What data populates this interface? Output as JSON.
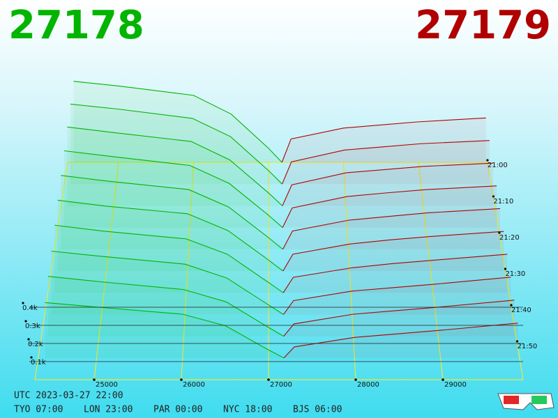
{
  "header": {
    "bid": "27178",
    "ask": "27179"
  },
  "chart_data": {
    "type": "depth3d",
    "bid_color": "#00b400",
    "ask_color": "#b00000",
    "xlim": [
      24320,
      29920
    ],
    "xticks": [
      25000,
      26000,
      27000,
      28000,
      29000
    ],
    "ylim": [
      0,
      400
    ],
    "yticks": [
      {
        "value": 100,
        "label": "0.1k"
      },
      {
        "value": 200,
        "label": "0.2k"
      },
      {
        "value": 300,
        "label": "0.3k"
      },
      {
        "value": 400,
        "label": "0.4k"
      }
    ],
    "zlim": [
      0,
      60
    ],
    "zticks": [
      {
        "value": 0,
        "label": "21:00"
      },
      {
        "value": 10,
        "label": "21:10"
      },
      {
        "value": 20,
        "label": "21:20"
      },
      {
        "value": 30,
        "label": "21:30"
      },
      {
        "value": 40,
        "label": "21:40"
      },
      {
        "value": 50,
        "label": "21:50"
      }
    ],
    "bid_prices": [
      27178,
      27000,
      26500,
      26000,
      25000,
      24400
    ],
    "ask_prices": [
      27179,
      27300,
      28000,
      28500,
      29000,
      29900
    ],
    "snapshots": [
      {
        "z": 0,
        "bids": [
          0,
          90,
          310,
          430,
          490,
          520
        ],
        "asks": [
          0,
          150,
          220,
          240,
          260,
          285
        ]
      },
      {
        "z": 6,
        "bids": [
          0,
          85,
          300,
          415,
          475,
          505
        ],
        "asks": [
          0,
          140,
          215,
          235,
          255,
          275
        ]
      },
      {
        "z": 12,
        "bids": [
          0,
          80,
          285,
          400,
          455,
          490
        ],
        "asks": [
          0,
          130,
          205,
          225,
          245,
          265
        ]
      },
      {
        "z": 18,
        "bids": [
          0,
          75,
          270,
          380,
          435,
          470
        ],
        "asks": [
          0,
          120,
          190,
          212,
          232,
          255
        ]
      },
      {
        "z": 24,
        "bids": [
          0,
          70,
          255,
          360,
          410,
          445
        ],
        "asks": [
          0,
          110,
          175,
          198,
          220,
          245
        ]
      },
      {
        "z": 30,
        "bids": [
          0,
          65,
          240,
          340,
          385,
          420
        ],
        "asks": [
          0,
          100,
          160,
          185,
          205,
          235
        ]
      },
      {
        "z": 36,
        "bids": [
          0,
          60,
          225,
          315,
          360,
          395
        ],
        "asks": [
          0,
          90,
          145,
          170,
          190,
          225
        ]
      },
      {
        "z": 42,
        "bids": [
          0,
          55,
          210,
          290,
          335,
          365
        ],
        "asks": [
          0,
          80,
          135,
          155,
          175,
          215
        ]
      },
      {
        "z": 48,
        "bids": [
          0,
          50,
          195,
          265,
          310,
          340
        ],
        "asks": [
          0,
          70,
          125,
          145,
          165,
          205
        ]
      },
      {
        "z": 54,
        "bids": [
          0,
          45,
          180,
          245,
          285,
          310
        ],
        "asks": [
          0,
          62,
          115,
          135,
          155,
          195
        ]
      }
    ]
  },
  "footer": {
    "utc": "UTC 2023-03-27 22:00",
    "zones": [
      "TYO 07:00",
      "LON 23:00",
      "PAR 00:00",
      "NYC 18:00",
      "BJS 06:00"
    ]
  }
}
